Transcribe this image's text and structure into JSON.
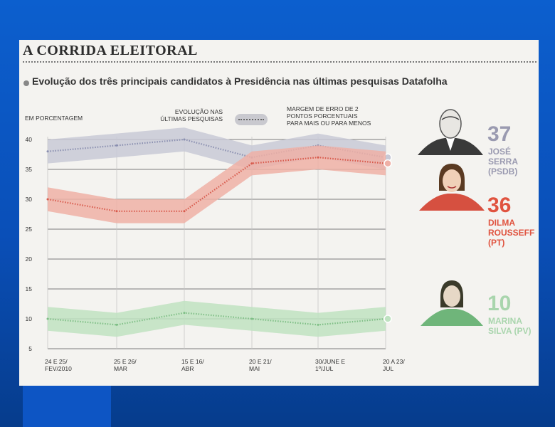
{
  "header": {
    "title": "A CORRIDA ELEITORAL",
    "subtitle": "Evolução dos três principais candidatos à Presidência nas últimas pesquisas Datafolha"
  },
  "labels": {
    "unit": "EM PORCENTAGEM",
    "legend_trend": "EVOLUÇÃO NAS\nÚLTIMAS PESQUISAS",
    "legend_margin": "MARGEM DE ERRO DE 2\nPONTOS PORCENTUAIS\nPARA MAIS OU PARA MENOS"
  },
  "colors": {
    "serra": "#8a8fb0",
    "serra_band": "#c8c9d6",
    "dilma": "#d85a4c",
    "dilma_band": "#efb0a6",
    "marina": "#7fbf86",
    "marina_band": "#bfe2c1",
    "dilma_text": "#e0533f",
    "serra_text": "#9a9ab0",
    "marina_text": "#a9d5ad"
  },
  "candidates": [
    {
      "pct": "37",
      "name": "JOSÉ\nSERRA\n(PSDB)",
      "icon": "portrait-serra"
    },
    {
      "pct": "36",
      "name": "DILMA\nROUSSEFF\n(PT)",
      "icon": "portrait-dilma"
    },
    {
      "pct": "10",
      "name": "MARINA\nSILVA (PV)",
      "icon": "portrait-marina"
    }
  ],
  "chart_data": {
    "type": "line",
    "title": "A CORRIDA ELEITORAL",
    "subtitle": "Evolução dos três principais candidatos à Presidência nas últimas pesquisas Datafolha",
    "ylabel": "EM PORCENTAGEM",
    "ylim": [
      5,
      40
    ],
    "yticks": [
      40,
      35,
      30,
      25,
      20,
      15,
      10,
      5
    ],
    "categories": [
      "24 E 25/ FEV/2010",
      "25 E 26/ MAR",
      "15 E 16/ ABR",
      "20 E 21/ MAI",
      "30/JUNE E 1º/JUL",
      "20 A 23/ JUL"
    ],
    "error_margin": 2,
    "series": [
      {
        "name": "JOSÉ SERRA (PSDB)",
        "color": "#8a8fb0",
        "band": "#c8c9d6",
        "values": [
          38,
          39,
          40,
          37,
          39,
          37
        ]
      },
      {
        "name": "DILMA ROUSSEFF (PT)",
        "color": "#d85a4c",
        "band": "#efb0a6",
        "values": [
          30,
          28,
          28,
          36,
          37,
          36
        ]
      },
      {
        "name": "MARINA SILVA (PV)",
        "color": "#7fbf86",
        "band": "#bfe2c1",
        "values": [
          10,
          9,
          11,
          10,
          9,
          10
        ]
      }
    ],
    "grid": true,
    "legend": "top"
  }
}
